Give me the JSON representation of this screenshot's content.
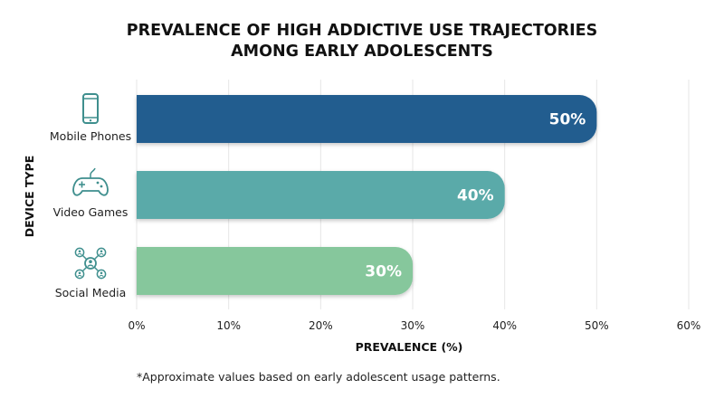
{
  "chart_data": {
    "type": "bar",
    "orientation": "horizontal",
    "title": [
      "PREVALENCE OF HIGH ADDICTIVE USE TRAJECTORIES",
      "AMONG EARLY ADOLESCENTS"
    ],
    "xlabel": "PREVALENCE (%)",
    "ylabel": "DEVICE TYPE",
    "categories": [
      "Mobile Phones",
      "Video Games",
      "Social Media"
    ],
    "values": [
      50,
      40,
      30
    ],
    "value_labels": [
      "50%",
      "40%",
      "30%"
    ],
    "xlim": [
      0,
      60
    ],
    "xticks": [
      0,
      10,
      20,
      30,
      40,
      50,
      60
    ],
    "xtick_labels": [
      "0%",
      "10%",
      "20%",
      "30%",
      "40%",
      "50%",
      "60%"
    ],
    "grid": true,
    "colors": [
      "#215d8f",
      "#5aaaa9",
      "#86c79c"
    ],
    "icons": [
      "mobile-phone-icon",
      "game-controller-icon",
      "social-network-icon"
    ],
    "footnote": "*Approximate values based on early adolescent usage patterns."
  }
}
